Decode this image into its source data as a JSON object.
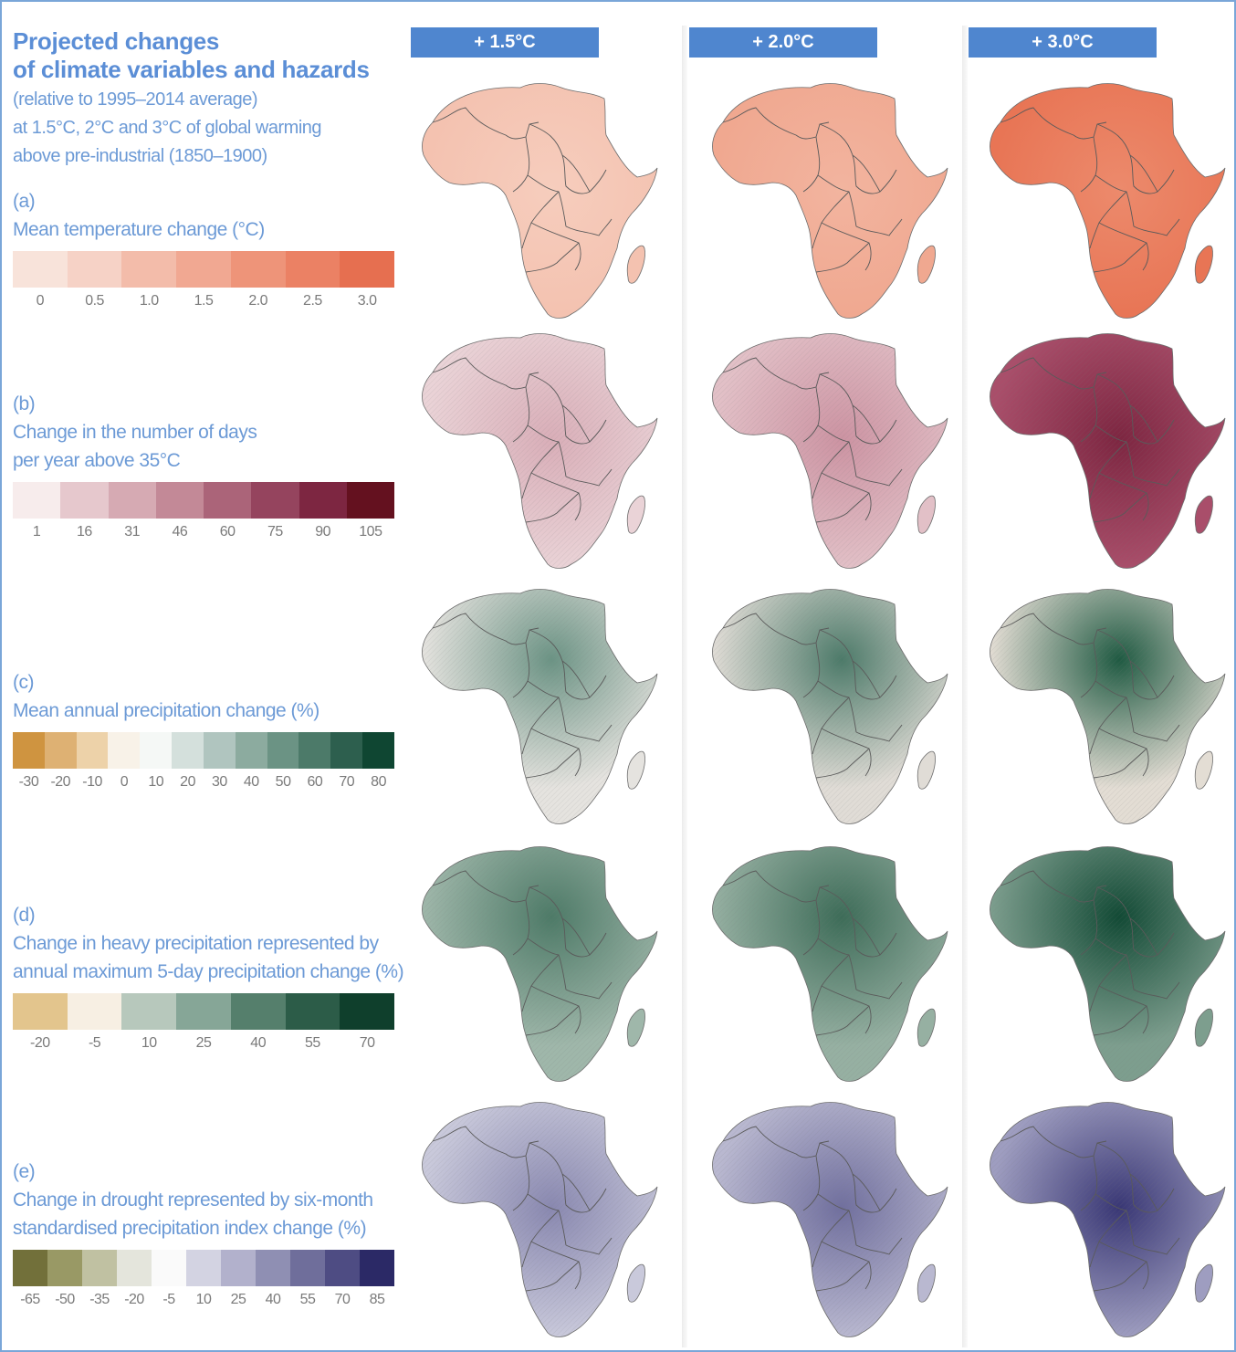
{
  "title": {
    "line1": "Projected changes",
    "line2": "of climate variables and hazards"
  },
  "subtitle": {
    "line1": "(relative to 1995–2014 average)",
    "line2": "at 1.5°C, 2°C and 3°C of global warming",
    "line3": "above pre-industrial (1850–1900)"
  },
  "columns": [
    "+ 1.5°C",
    "+ 2.0°C",
    "+ 3.0°C"
  ],
  "panels": [
    {
      "letter": "(a)",
      "title": [
        "Mean temperature change (°C)"
      ],
      "colors": [
        "#f8e3da",
        "#f6d2c6",
        "#f3bcaa",
        "#f1a892",
        "#ee9479",
        "#eb8164",
        "#e66f50"
      ],
      "ticks": [
        "0",
        "0.5",
        "1.0",
        "1.5",
        "2.0",
        "2.5",
        "3.0"
      ],
      "map_colors": [
        "#f4c2b0",
        "#f0a890",
        "#e87555"
      ],
      "map_accent": [
        "#f6cdbd",
        "#f2b49f",
        "#ec8a6c"
      ]
    },
    {
      "letter": "(b)",
      "title": [
        "Change in the number of days",
        "per year above 35°C"
      ],
      "colors": [
        "#f7ecec",
        "#e6c8cd",
        "#d6aab3",
        "#c38997",
        "#ab6479",
        "#95445e",
        "#7d2641",
        "#64111f"
      ],
      "ticks": [
        "1",
        "16",
        "31",
        "46",
        "60",
        "75",
        "90",
        "105"
      ],
      "map_colors": [
        "#ead3d7",
        "#e2c0c7",
        "#a94e6a"
      ],
      "map_accent": [
        "#d9aeb8",
        "#cc93a2",
        "#7d2641"
      ]
    },
    {
      "letter": "(c)",
      "title": [
        "Mean annual precipitation change (%)"
      ],
      "colors": [
        "#cf9440",
        "#deb173",
        "#edd2a9",
        "#f8f2e8",
        "#f5f8f6",
        "#d4e0dc",
        "#b0c5bf",
        "#8cab9f",
        "#6b9384",
        "#4c7a69",
        "#2d5f4e",
        "#0f4632"
      ],
      "ticks": [
        "-30",
        "-20",
        "-10",
        "0",
        "10",
        "20",
        "30",
        "40",
        "50",
        "60",
        "70",
        "80"
      ],
      "map_colors": [
        "#e5e3df",
        "#e0dcd6",
        "#e3ddd4"
      ],
      "map_accent": [
        "#6b9384",
        "#4c7a69",
        "#1f5a42"
      ]
    },
    {
      "letter": "(d)",
      "title": [
        "Change in heavy precipitation represented by",
        "annual maximum 5-day precipitation change (%)"
      ],
      "colors": [
        "#e3c58d",
        "#f7efe3",
        "#b7c8bc",
        "#86a697",
        "#557f6c",
        "#2c5c48",
        "#0f3f2c"
      ],
      "ticks": [
        "-20",
        "-5",
        "10",
        "25",
        "40",
        "55",
        "70"
      ],
      "map_colors": [
        "#9fb7aa",
        "#96b0a2",
        "#7d9e8e"
      ],
      "map_accent": [
        "#4d7a67",
        "#3d6c58",
        "#124a35"
      ]
    },
    {
      "letter": "(e)",
      "title": [
        "Change in drought represented by six-month",
        "standardised precipitation index change (%)"
      ],
      "colors": [
        "#72703a",
        "#999965",
        "#c0c1a2",
        "#e4e5dc",
        "#fafafa",
        "#d3d3e2",
        "#b2b1cc",
        "#8f8fb3",
        "#6f6e9b",
        "#4e4c83",
        "#2b2966"
      ],
      "ticks": [
        "-65",
        "-50",
        "-35",
        "-20",
        "-5",
        "10",
        "25",
        "40",
        "55",
        "70",
        "85"
      ],
      "map_colors": [
        "#c9c9db",
        "#b9b8d0",
        "#9e9dc0"
      ],
      "map_accent": [
        "#8988b0",
        "#706f9e",
        "#393775"
      ]
    }
  ]
}
